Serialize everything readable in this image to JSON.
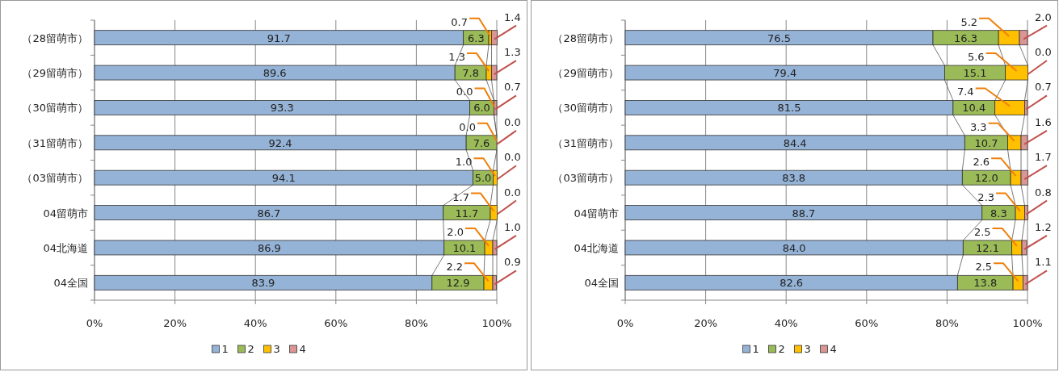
{
  "chart_data": [
    {
      "type": "bar",
      "orientation": "horizontal",
      "stacked": true,
      "categories": [
        "（28留萌市）",
        "（29留萌市）",
        "（30留萌市）",
        "（31留萌市）",
        "（03留萌市）",
        "04留萌市",
        "04北海道",
        "04全国"
      ],
      "series": [
        {
          "name": "1",
          "color": "#95b3d7",
          "values": [
            91.7,
            89.6,
            93.3,
            92.4,
            94.1,
            86.7,
            86.9,
            83.9
          ],
          "value_labels": [
            "91.7",
            "89.6",
            "93.3",
            "92.4",
            "94.1",
            "86.7",
            "86.9",
            "83.9"
          ]
        },
        {
          "name": "2",
          "color": "#9bbb59",
          "values": [
            6.3,
            7.8,
            6.0,
            7.6,
            5.0,
            11.7,
            10.1,
            12.9
          ],
          "value_labels": [
            "6.3",
            "7.8",
            "6.0",
            "7.6",
            "5.0",
            "11.7",
            "10.1",
            "12.9"
          ]
        },
        {
          "name": "3",
          "color": "#ffc000",
          "values": [
            0.7,
            1.3,
            0.0,
            0.0,
            1.0,
            1.7,
            2.0,
            2.2
          ],
          "value_labels": [
            "0.7",
            "1.3",
            "0.0",
            "0.0",
            "1.0",
            "1.7",
            "2.0",
            "2.2"
          ]
        },
        {
          "name": "4",
          "color": "#d99694",
          "values": [
            1.4,
            1.3,
            0.7,
            0.0,
            0.0,
            0.0,
            1.0,
            0.9
          ],
          "value_labels": [
            "1.4",
            "1.3",
            "0.7",
            "0.0",
            "0.0",
            "0.0",
            "1.0",
            "0.9"
          ]
        }
      ],
      "xlim": [
        0,
        100
      ],
      "xticks": [
        {
          "value": 0,
          "label": "0%"
        },
        {
          "value": 20,
          "label": "20%"
        },
        {
          "value": 40,
          "label": "40%"
        },
        {
          "value": 60,
          "label": "60%"
        },
        {
          "value": 80,
          "label": "80%"
        },
        {
          "value": 100,
          "label": "100%"
        }
      ],
      "grid": "x",
      "legend": "bottom"
    },
    {
      "type": "bar",
      "orientation": "horizontal",
      "stacked": true,
      "categories": [
        "（28留萌市）",
        "（29留萌市）",
        "（30留萌市）",
        "（31留萌市）",
        "（03留萌市）",
        "04留萌市",
        "04北海道",
        "04全国"
      ],
      "series": [
        {
          "name": "1",
          "color": "#95b3d7",
          "values": [
            76.5,
            79.4,
            81.5,
            84.4,
            83.8,
            88.7,
            84.0,
            82.6
          ],
          "value_labels": [
            "76.5",
            "79.4",
            "81.5",
            "84.4",
            "83.8",
            "88.7",
            "84.0",
            "82.6"
          ]
        },
        {
          "name": "2",
          "color": "#9bbb59",
          "values": [
            16.3,
            15.1,
            10.4,
            10.7,
            12.0,
            8.3,
            12.1,
            13.8
          ],
          "value_labels": [
            "16.3",
            "15.1",
            "10.4",
            "10.7",
            "12.0",
            "8.3",
            "12.1",
            "13.8"
          ]
        },
        {
          "name": "3",
          "color": "#ffc000",
          "values": [
            5.2,
            5.6,
            7.4,
            3.3,
            2.6,
            2.3,
            2.5,
            2.5
          ],
          "value_labels": [
            "5.2",
            "5.6",
            "7.4",
            "3.3",
            "2.6",
            "2.3",
            "2.5",
            "2.5"
          ]
        },
        {
          "name": "4",
          "color": "#d99694",
          "values": [
            2.0,
            0.0,
            0.7,
            1.6,
            1.7,
            0.8,
            1.2,
            1.1
          ],
          "value_labels": [
            "2.0",
            "0.0",
            "0.7",
            "1.6",
            "1.7",
            "0.8",
            "1.2",
            "1.1"
          ]
        }
      ],
      "xlim": [
        0,
        100
      ],
      "xticks": [
        {
          "value": 0,
          "label": "0%"
        },
        {
          "value": 20,
          "label": "20%"
        },
        {
          "value": 40,
          "label": "40%"
        },
        {
          "value": 60,
          "label": "60%"
        },
        {
          "value": 80,
          "label": "80%"
        },
        {
          "value": 100,
          "label": "100%"
        }
      ],
      "grid": "x",
      "legend": "bottom"
    }
  ]
}
